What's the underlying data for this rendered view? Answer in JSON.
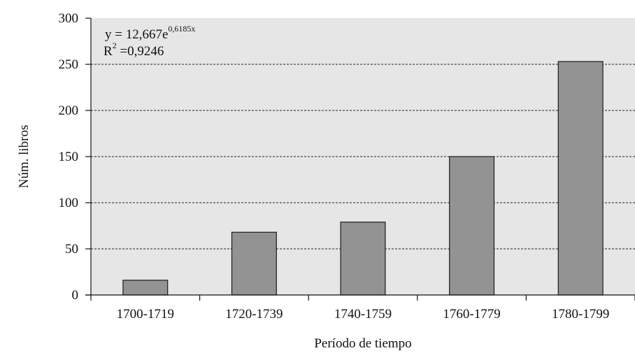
{
  "chart_data": {
    "type": "bar",
    "categories": [
      "1700-1719",
      "1720-1739",
      "1740-1759",
      "1760-1779",
      "1780-1799"
    ],
    "values": [
      16,
      68,
      79,
      150,
      253
    ],
    "xlabel": "Período de tiempo",
    "ylabel": "Núm. libros",
    "ylim": [
      0,
      300
    ],
    "yticks": [
      0,
      50,
      100,
      150,
      200,
      250,
      300
    ],
    "grid": true,
    "trendline": {
      "equation_main": "y = 12,667e",
      "equation_exp": "0,6185x",
      "r2_label": "R",
      "r2_sup": "2",
      "r2_value": " =0,9246"
    },
    "colors": {
      "bar_fill": "#939393",
      "bar_stroke": "#1a1a1a",
      "plot_bg": "#e6e6e6",
      "grid": "#222222"
    }
  }
}
